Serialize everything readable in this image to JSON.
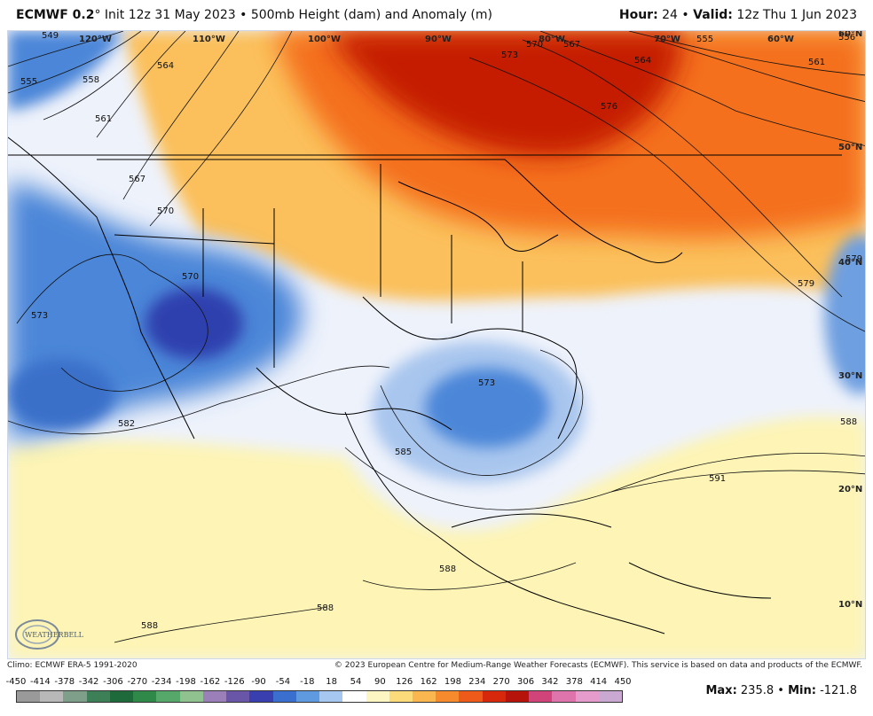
{
  "header": {
    "model": "ECMWF 0.2",
    "degree": "°",
    "init": "Init 12z 31 May 2023",
    "sep": "•",
    "field": "500mb Height (dam) and Anomaly (m)",
    "hour_label": "Hour:",
    "hour_value": "24",
    "valid_label": "Valid:",
    "valid_value": "12z Thu 1 Jun 2023"
  },
  "map": {
    "longitude_labels": [
      "120°W",
      "110°W",
      "100°W",
      "90°W",
      "80°W",
      "70°W",
      "60°W"
    ],
    "latitude_labels": [
      "60°N",
      "50°N",
      "40°N",
      "30°N",
      "20°N",
      "10°N"
    ],
    "contour_labels": [
      "549",
      "555",
      "558",
      "561",
      "564",
      "567",
      "570",
      "570",
      "573",
      "573",
      "576",
      "570",
      "567",
      "555",
      "556",
      "564",
      "561",
      "579",
      "582",
      "585",
      "588",
      "588",
      "591",
      "588",
      "588",
      "573",
      "579"
    ],
    "colors": {
      "strong_positive": "#c51b00",
      "positive": "#f46f1f",
      "weak_positive": "#fbc05c",
      "slight_positive": "#fdf4b5",
      "neutral": "#eef2fb",
      "slight_negative": "#a9c6ee",
      "negative": "#4b86d8",
      "strong_negative": "#2d3fae"
    }
  },
  "logo": {
    "text": "WEATHERBELL"
  },
  "footer": {
    "climo": "Climo: ECMWF ERA-5 1991-2020",
    "copyright": "© 2023 European Centre for Medium-Range Weather Forecasts (ECMWF). This service is based on data and products of the ECMWF."
  },
  "legend": {
    "ticks": [
      "-450",
      "-414",
      "-378",
      "-342",
      "-306",
      "-270",
      "-234",
      "-198",
      "-162",
      "-126",
      "-90",
      "-54",
      "-18",
      "18",
      "54",
      "90",
      "126",
      "162",
      "198",
      "234",
      "270",
      "306",
      "342",
      "378",
      "414",
      "450"
    ],
    "colors": [
      "#9a9a9a",
      "#b8b8b8",
      "#7f9f8a",
      "#3d7f56",
      "#1f6a3a",
      "#2f8a4a",
      "#56a86a",
      "#8fc28f",
      "#9a7fb8",
      "#6a56a8",
      "#3a3fb0",
      "#3b6fcf",
      "#5f9ae0",
      "#a6c8f0",
      "#ffffff",
      "#fdf6c2",
      "#fcdc7a",
      "#fbb74f",
      "#f78a2c",
      "#ee5a1a",
      "#d8280c",
      "#b6140a",
      "#d0447a",
      "#df74ad",
      "#e59ccc",
      "#c9a8d2"
    ]
  },
  "stats": {
    "max_label": "Max:",
    "max_value": "235.8",
    "sep": "•",
    "min_label": "Min:",
    "min_value": "-121.8"
  }
}
